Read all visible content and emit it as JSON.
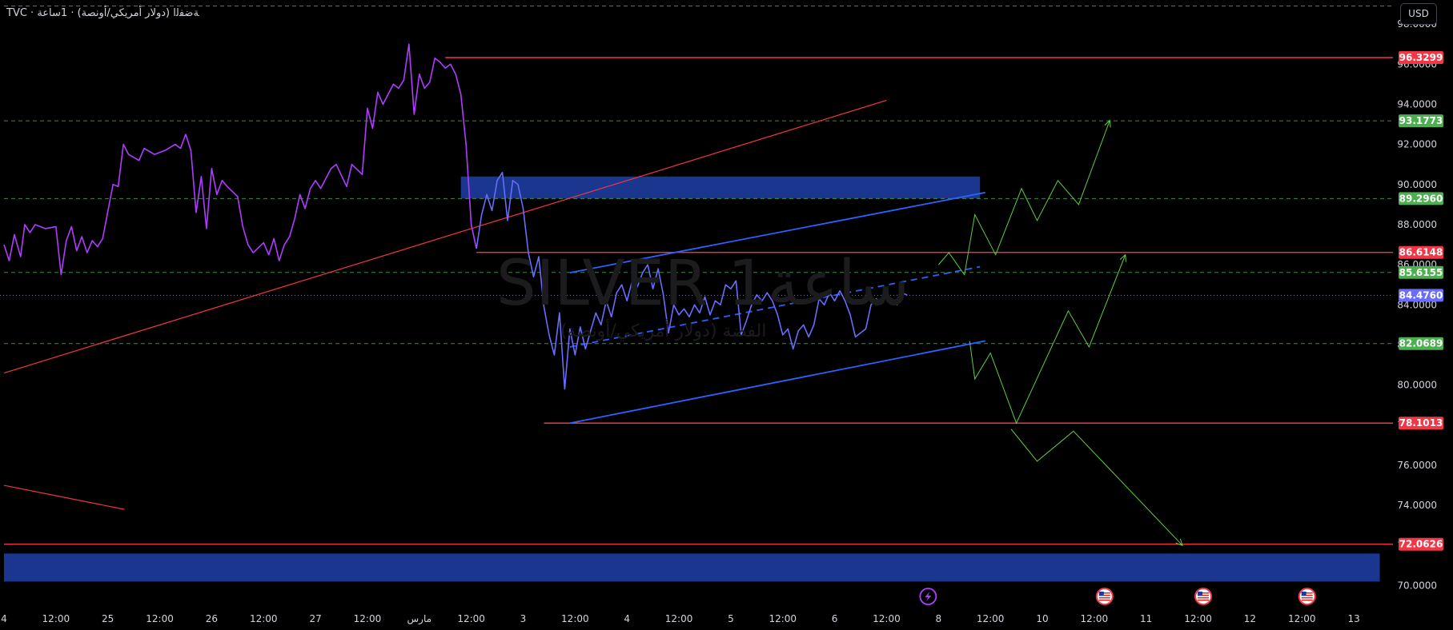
{
  "header": {
    "symbol_line": "TVC · ﺔﺿﻔﻟﺍ (ﺩﻭﻻﺭ ﺃﻣﺮﻳﻜﻲ/ﺃﻭﻧﺼﺔ) · 1ﺳﺎﻋﺔ"
  },
  "currency_button": {
    "label": "USD"
  },
  "watermark": {
    "title": "SILVER 1ساعة",
    "subtitle": "الفضة (دولار أمريكي/أونصة)"
  },
  "colors": {
    "price_line_old": "#b03cff",
    "price_line_new": "#6a6bff",
    "resistance": "#f23645",
    "support_dashed": "#4caf50",
    "channel": "#2962ff",
    "zone": "#1e3fa8",
    "projection": "#5fcf3a",
    "current_price_tag": "#6a6bff"
  },
  "chart_data": {
    "type": "line",
    "title": "SILVER 1ساعة",
    "ylim": [
      69.5,
      99.2
    ],
    "y_ticks": [
      "98.0000",
      "96.0000",
      "94.0000",
      "92.0000",
      "90.0000",
      "88.0000",
      "86.0000",
      "84.0000",
      "82.0000",
      "80.0000",
      "78.0000",
      "76.0000",
      "74.0000",
      "72.0000",
      "70.0000"
    ],
    "x_ticks": [
      "4",
      "12:00",
      "25",
      "12:00",
      "26",
      "12:00",
      "27",
      "12:00",
      "مارس",
      "12:00",
      "3",
      "12:00",
      "4",
      "12:00",
      "5",
      "12:00",
      "6",
      "12:00",
      "8",
      "12:00",
      "10",
      "12:00",
      "11",
      "12:00",
      "12",
      "12:00",
      "13"
    ],
    "x_tick_index": [
      0,
      0.5,
      1,
      1.5,
      2,
      2.5,
      3,
      3.5,
      4,
      4.5,
      5,
      5.5,
      6,
      6.5,
      7,
      7.5,
      8,
      8.5,
      9,
      9.5,
      10,
      10.5,
      11,
      11.5,
      12,
      12.5,
      13
    ],
    "price_tags": [
      {
        "value": 96.3299,
        "label": "96.3299",
        "kind": "resistance"
      },
      {
        "value": 93.1773,
        "label": "93.1773",
        "kind": "support"
      },
      {
        "value": 89.296,
        "label": "89.2960",
        "kind": "support"
      },
      {
        "value": 86.6148,
        "label": "86.6148",
        "kind": "resistance"
      },
      {
        "value": 85.6155,
        "label": "85.6155",
        "kind": "support"
      },
      {
        "value": 84.476,
        "label": "84.4760",
        "kind": "current"
      },
      {
        "value": 82.0689,
        "label": "82.0689",
        "kind": "support"
      },
      {
        "value": 78.1013,
        "label": "78.1013",
        "kind": "resistance"
      },
      {
        "value": 72.0626,
        "label": "72.0626",
        "kind": "resistance"
      }
    ],
    "series": [
      {
        "style": "old",
        "points": [
          [
            0,
            87.0
          ],
          [
            0.05,
            86.2
          ],
          [
            0.1,
            87.5
          ],
          [
            0.16,
            86.4
          ],
          [
            0.2,
            88.0
          ],
          [
            0.25,
            87.6
          ],
          [
            0.3,
            88.0
          ],
          [
            0.4,
            87.8
          ],
          [
            0.5,
            87.9
          ],
          [
            0.55,
            85.5
          ],
          [
            0.6,
            87.2
          ],
          [
            0.65,
            87.9
          ],
          [
            0.7,
            86.7
          ],
          [
            0.75,
            87.4
          ],
          [
            0.8,
            86.6
          ],
          [
            0.85,
            87.2
          ],
          [
            0.9,
            86.9
          ],
          [
            0.95,
            87.3
          ],
          [
            1.05,
            90.0
          ],
          [
            1.1,
            89.9
          ],
          [
            1.15,
            92.0
          ],
          [
            1.2,
            91.5
          ],
          [
            1.3,
            91.2
          ],
          [
            1.35,
            91.8
          ],
          [
            1.45,
            91.5
          ],
          [
            1.55,
            91.7
          ],
          [
            1.65,
            92.0
          ],
          [
            1.7,
            91.8
          ],
          [
            1.75,
            92.5
          ],
          [
            1.8,
            91.7
          ],
          [
            1.85,
            88.6
          ],
          [
            1.9,
            90.4
          ],
          [
            1.95,
            87.8
          ],
          [
            2.0,
            90.8
          ],
          [
            2.05,
            89.5
          ],
          [
            2.1,
            90.2
          ],
          [
            2.15,
            89.9
          ],
          [
            2.25,
            89.4
          ],
          [
            2.3,
            87.9
          ],
          [
            2.35,
            87.0
          ],
          [
            2.4,
            86.6
          ],
          [
            2.5,
            87.1
          ],
          [
            2.55,
            86.5
          ],
          [
            2.6,
            87.3
          ],
          [
            2.65,
            86.2
          ],
          [
            2.7,
            87.0
          ],
          [
            2.75,
            87.4
          ],
          [
            2.8,
            88.3
          ],
          [
            2.85,
            89.5
          ],
          [
            2.9,
            88.8
          ],
          [
            2.95,
            89.8
          ],
          [
            3.0,
            90.2
          ],
          [
            3.05,
            89.8
          ],
          [
            3.15,
            90.8
          ],
          [
            3.2,
            91.0
          ],
          [
            3.3,
            89.9
          ],
          [
            3.35,
            91.0
          ],
          [
            3.45,
            90.5
          ],
          [
            3.5,
            93.8
          ],
          [
            3.55,
            92.8
          ],
          [
            3.6,
            94.6
          ],
          [
            3.65,
            94.0
          ],
          [
            3.75,
            95.0
          ],
          [
            3.8,
            94.8
          ],
          [
            3.85,
            95.2
          ],
          [
            3.9,
            97.0
          ],
          [
            3.95,
            93.5
          ],
          [
            4.0,
            95.5
          ],
          [
            4.05,
            94.8
          ],
          [
            4.1,
            95.1
          ],
          [
            4.15,
            96.3
          ],
          [
            4.2,
            96.1
          ],
          [
            4.25,
            95.8
          ],
          [
            4.3,
            96.0
          ],
          [
            4.35,
            95.5
          ],
          [
            4.4,
            94.5
          ],
          [
            4.45,
            92.0
          ],
          [
            4.5,
            88.0
          ],
          [
            4.55,
            86.8
          ]
        ]
      },
      {
        "style": "new",
        "points": [
          [
            4.55,
            86.8
          ],
          [
            4.6,
            88.5
          ],
          [
            4.65,
            89.5
          ],
          [
            4.7,
            88.7
          ],
          [
            4.75,
            90.2
          ],
          [
            4.8,
            90.6
          ],
          [
            4.85,
            88.2
          ],
          [
            4.9,
            90.2
          ],
          [
            4.95,
            90.0
          ],
          [
            5.0,
            88.8
          ],
          [
            5.05,
            86.6
          ],
          [
            5.1,
            85.4
          ],
          [
            5.15,
            86.4
          ],
          [
            5.2,
            83.9
          ],
          [
            5.25,
            82.5
          ],
          [
            5.3,
            81.5
          ],
          [
            5.35,
            83.6
          ],
          [
            5.4,
            79.8
          ],
          [
            5.45,
            82.8
          ],
          [
            5.5,
            81.5
          ],
          [
            5.55,
            82.9
          ],
          [
            5.6,
            81.8
          ],
          [
            5.65,
            82.7
          ],
          [
            5.7,
            83.6
          ],
          [
            5.75,
            83.0
          ],
          [
            5.8,
            84.2
          ],
          [
            5.85,
            83.4
          ],
          [
            5.9,
            84.6
          ],
          [
            5.95,
            85.0
          ],
          [
            6.0,
            84.2
          ],
          [
            6.05,
            85.2
          ],
          [
            6.1,
            84.9
          ],
          [
            6.15,
            85.6
          ],
          [
            6.2,
            86.0
          ],
          [
            6.25,
            84.8
          ],
          [
            6.3,
            85.8
          ],
          [
            6.35,
            84.5
          ],
          [
            6.4,
            82.6
          ],
          [
            6.45,
            84.0
          ],
          [
            6.5,
            83.5
          ],
          [
            6.55,
            83.8
          ],
          [
            6.6,
            83.4
          ],
          [
            6.65,
            84.0
          ],
          [
            6.7,
            83.6
          ],
          [
            6.75,
            84.4
          ],
          [
            6.8,
            83.5
          ],
          [
            6.85,
            84.2
          ],
          [
            6.9,
            84.0
          ],
          [
            6.95,
            85.0
          ],
          [
            7.0,
            84.8
          ],
          [
            7.05,
            85.2
          ],
          [
            7.1,
            82.5
          ],
          [
            7.15,
            83.2
          ],
          [
            7.2,
            84.0
          ],
          [
            7.25,
            84.5
          ],
          [
            7.3,
            84.2
          ],
          [
            7.35,
            84.6
          ],
          [
            7.4,
            84.2
          ],
          [
            7.45,
            83.5
          ],
          [
            7.5,
            82.5
          ],
          [
            7.55,
            82.8
          ],
          [
            7.6,
            81.8
          ],
          [
            7.65,
            82.7
          ],
          [
            7.7,
            83.0
          ],
          [
            7.75,
            82.4
          ],
          [
            7.8,
            83.0
          ],
          [
            7.85,
            84.3
          ],
          [
            7.9,
            84.0
          ],
          [
            7.95,
            84.6
          ],
          [
            8.0,
            84.2
          ],
          [
            8.05,
            84.7
          ],
          [
            8.1,
            84.2
          ],
          [
            8.15,
            83.5
          ],
          [
            8.2,
            82.4
          ],
          [
            8.25,
            82.6
          ],
          [
            8.3,
            82.8
          ],
          [
            8.35,
            84.0
          ],
          [
            8.4,
            84.3
          ],
          [
            8.45,
            84.1
          ],
          [
            8.5,
            84.4
          ],
          [
            8.55,
            84.3
          ],
          [
            8.6,
            84.0
          ],
          [
            8.65,
            84.6
          ],
          [
            8.7,
            84.48
          ]
        ]
      }
    ],
    "horizontal_lines": [
      {
        "value": 96.3299,
        "x_start": 4.25,
        "kind": "resistance"
      },
      {
        "value": 86.6148,
        "x_start": 4.55,
        "kind": "resistance"
      },
      {
        "value": 78.1013,
        "x_start": 5.2,
        "kind": "resistance"
      },
      {
        "value": 72.0626,
        "x_start": 0,
        "kind": "resistance"
      },
      {
        "value": 93.1773,
        "x_start": 0,
        "kind": "support"
      },
      {
        "value": 89.296,
        "x_start": 0,
        "kind": "support"
      },
      {
        "value": 85.6155,
        "x_start": 0,
        "kind": "support"
      },
      {
        "value": 82.0689,
        "x_start": 0,
        "kind": "support"
      },
      {
        "value": 98.9,
        "x_start": 0,
        "kind": "support"
      }
    ],
    "trend_lines": [
      {
        "from": [
          0,
          80.6
        ],
        "to": [
          8.5,
          94.2
        ],
        "kind": "resistance"
      },
      {
        "from": [
          0,
          75.0
        ],
        "to": [
          1.16,
          73.8
        ],
        "kind": "resistance"
      },
      {
        "from": [
          5.45,
          85.6
        ],
        "to": [
          9.45,
          89.6
        ],
        "kind": "channel"
      },
      {
        "from": [
          5.45,
          78.1
        ],
        "to": [
          9.45,
          82.2
        ],
        "kind": "channel"
      },
      {
        "from": [
          5.45,
          81.9
        ],
        "to": [
          9.4,
          85.9
        ],
        "kind": "channel_dashed"
      }
    ],
    "zones": [
      {
        "x_from": 4.4,
        "x_to": 9.4,
        "y_from": 89.3,
        "y_to": 90.4,
        "kind": "zone"
      },
      {
        "x_from": 0,
        "x_to": 13.25,
        "y_from": 70.2,
        "y_to": 71.6,
        "kind": "zone"
      }
    ],
    "projections": [
      {
        "points": [
          [
            9.0,
            86.0
          ],
          [
            9.1,
            86.6
          ],
          [
            9.25,
            85.5
          ],
          [
            9.35,
            88.5
          ],
          [
            9.55,
            86.5
          ],
          [
            9.8,
            89.8
          ],
          [
            9.95,
            88.2
          ],
          [
            10.15,
            90.2
          ],
          [
            10.35,
            89.0
          ],
          [
            10.65,
            93.2
          ]
        ],
        "arrow": true
      },
      {
        "points": [
          [
            9.3,
            82.2
          ],
          [
            9.35,
            80.3
          ],
          [
            9.5,
            81.6
          ],
          [
            9.75,
            78.1
          ],
          [
            10.25,
            83.7
          ],
          [
            10.45,
            81.9
          ],
          [
            10.8,
            86.5
          ]
        ],
        "arrow": true
      },
      {
        "points": [
          [
            9.7,
            77.8
          ],
          [
            9.95,
            76.2
          ],
          [
            10.3,
            77.7
          ],
          [
            11.35,
            72.0
          ]
        ],
        "arrow": true
      }
    ],
    "event_markers": [
      {
        "x": 8.9,
        "icon": "lightning-icon"
      },
      {
        "x": 10.6,
        "icon": "us-flag-icon"
      },
      {
        "x": 11.55,
        "icon": "us-flag-icon"
      },
      {
        "x": 12.55,
        "icon": "us-flag-icon"
      }
    ]
  }
}
